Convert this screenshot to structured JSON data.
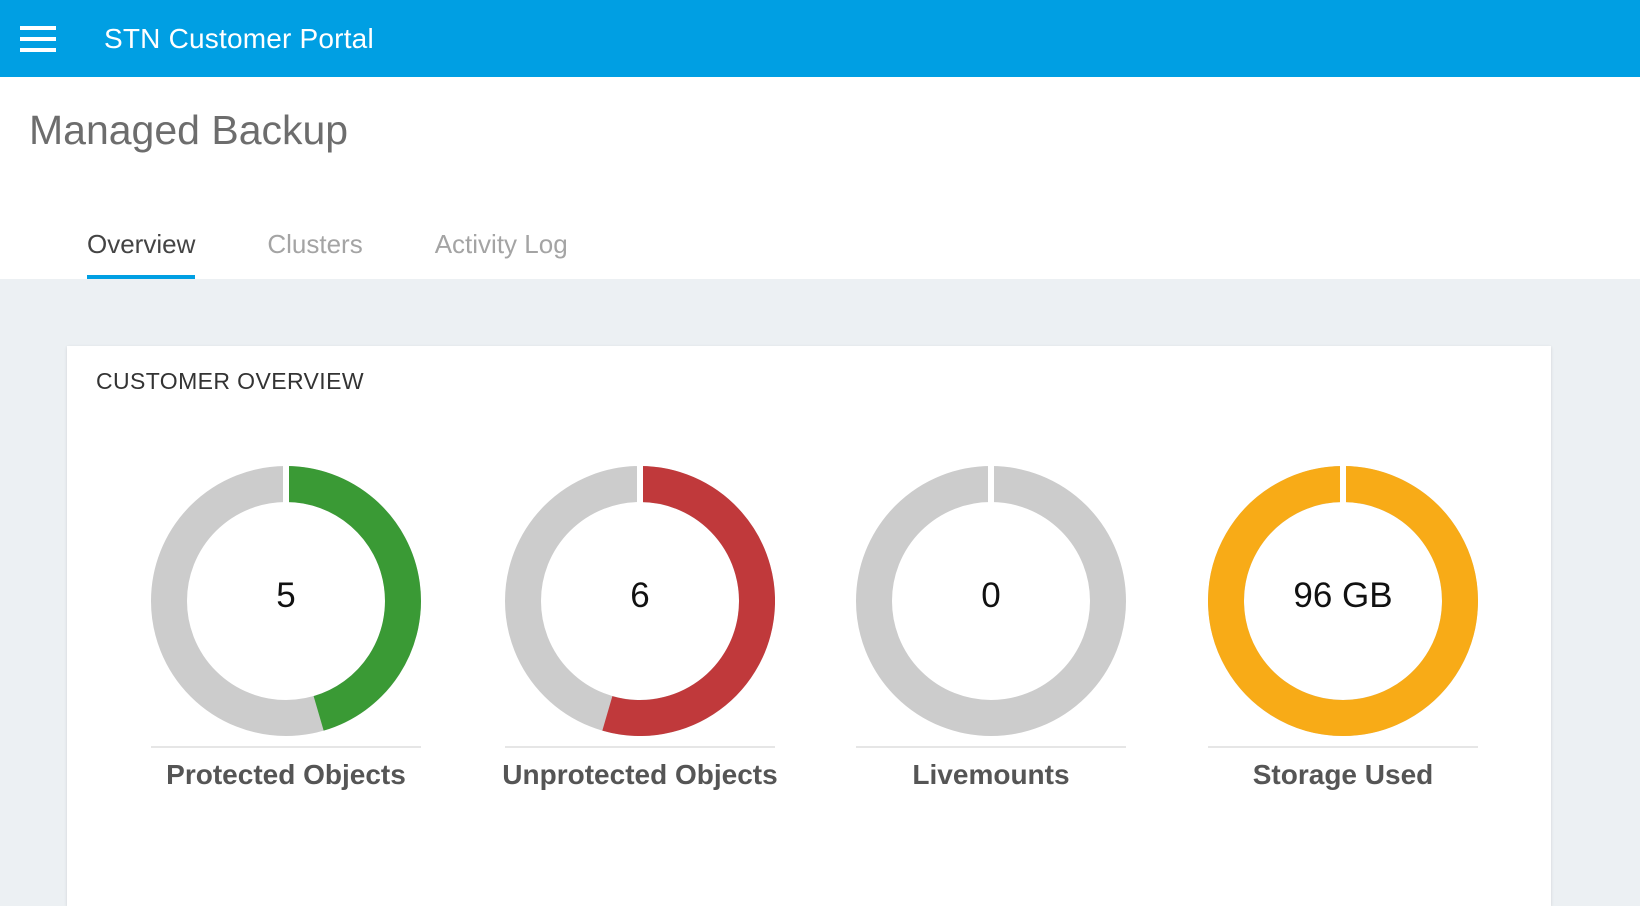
{
  "topbar": {
    "title": "STN Customer Portal",
    "menu_icon": "hamburger-menu-icon",
    "color": "#009fe3"
  },
  "page": {
    "title": "Managed Backup"
  },
  "tabs": [
    {
      "label": "Overview",
      "active": true
    },
    {
      "label": "Clusters",
      "active": false
    },
    {
      "label": "Activity Log",
      "active": false
    }
  ],
  "overview_card": {
    "title": "CUSTOMER OVERVIEW",
    "metrics": [
      {
        "value": "5",
        "label": "Protected Objects",
        "fraction": 0.455,
        "color": "#3a9a35"
      },
      {
        "value": "6",
        "label": "Unprotected Objects",
        "fraction": 0.545,
        "color": "#c0393b"
      },
      {
        "value": "0",
        "label": "Livemounts",
        "fraction": 0,
        "color": "#cccccc"
      },
      {
        "value": "96 GB",
        "label": "Storage Used",
        "fraction": 1,
        "color": "#f8ab17"
      }
    ],
    "track_color": "#cccccc"
  }
}
